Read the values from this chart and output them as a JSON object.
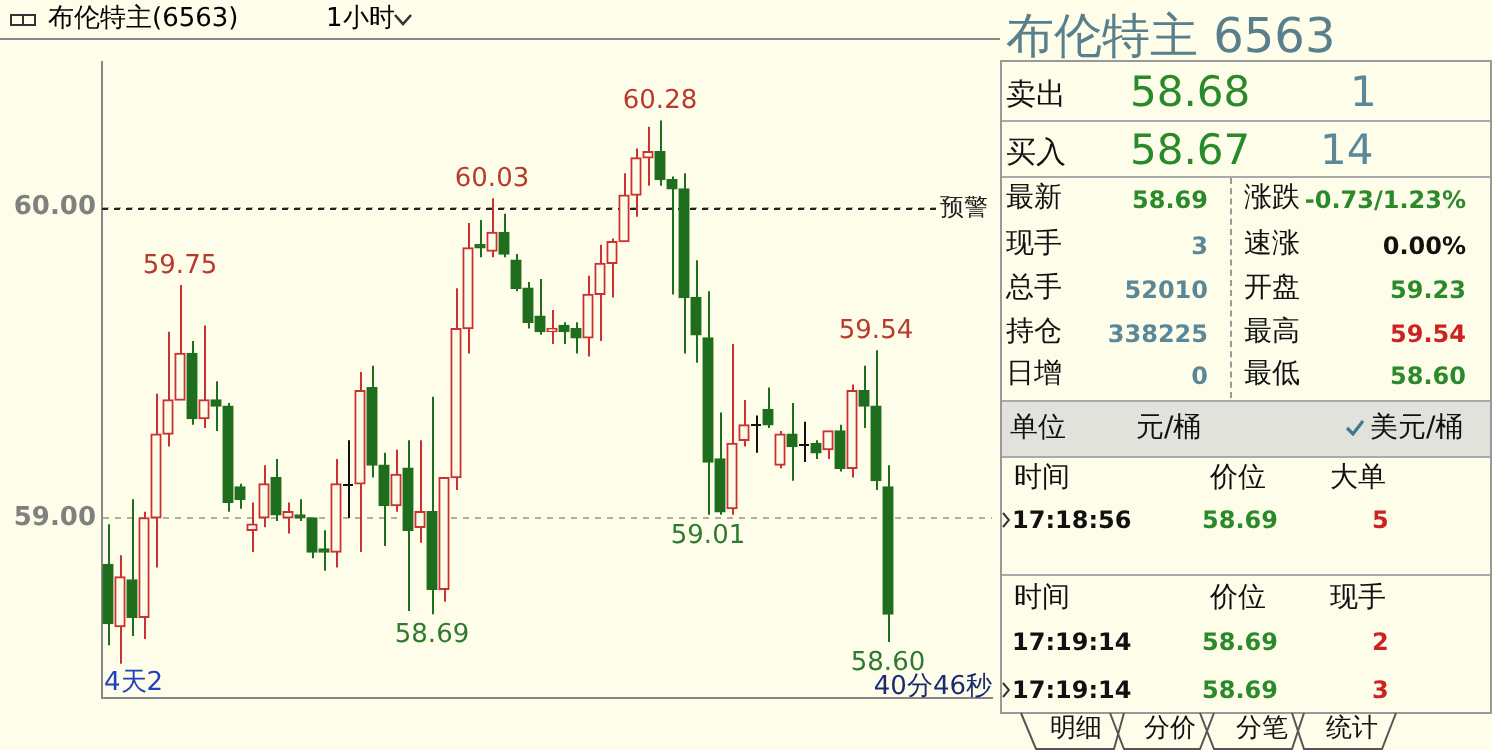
{
  "chart_data": [
    {
      "type": "candlestick",
      "title": "布伦特主(6563)",
      "subtitle": "1小时",
      "categories": [
        null,
        null,
        null,
        null,
        null,
        null,
        null,
        null,
        null,
        null,
        null,
        null,
        null,
        null,
        null,
        null,
        null,
        null,
        null,
        null,
        null,
        null,
        null,
        null,
        null,
        null,
        null,
        null,
        null,
        null,
        null,
        null,
        null,
        null,
        null,
        null,
        null,
        null,
        null,
        null,
        null,
        null,
        null,
        null,
        null,
        null,
        null,
        null,
        null,
        null,
        null,
        null,
        null,
        null,
        null,
        null,
        null,
        null,
        null,
        null,
        null,
        null,
        null,
        null,
        null,
        null
      ],
      "ohlc": [
        [
          58.85,
          58.98,
          58.59,
          58.66
        ],
        [
          58.65,
          58.88,
          58.53,
          58.81
        ],
        [
          58.8,
          59.06,
          58.62,
          58.68
        ],
        [
          58.68,
          59.02,
          58.61,
          59.0
        ],
        [
          59.0,
          59.4,
          58.84,
          59.27
        ],
        [
          59.27,
          59.6,
          59.23,
          59.38
        ],
        [
          59.38,
          59.75,
          59.38,
          59.53
        ],
        [
          59.53,
          59.57,
          59.3,
          59.32
        ],
        [
          59.32,
          59.62,
          59.29,
          59.38
        ],
        [
          59.38,
          59.44,
          59.28,
          59.36
        ],
        [
          59.36,
          59.37,
          59.02,
          59.05
        ],
        [
          59.1,
          59.11,
          59.03,
          59.06
        ],
        [
          58.96,
          59.05,
          58.89,
          58.98
        ],
        [
          59.0,
          59.17,
          58.97,
          59.11
        ],
        [
          59.13,
          59.19,
          58.99,
          59.01
        ],
        [
          59.0,
          59.05,
          58.95,
          59.02
        ],
        [
          59.01,
          59.06,
          58.99,
          59.0
        ],
        [
          59.0,
          59.0,
          58.87,
          58.89
        ],
        [
          58.9,
          58.96,
          58.83,
          58.89
        ],
        [
          58.89,
          59.19,
          58.84,
          59.11
        ],
        [
          59.11,
          59.25,
          59.0,
          59.11
        ],
        [
          59.11,
          59.47,
          58.89,
          59.41
        ],
        [
          59.42,
          59.49,
          59.13,
          59.17
        ],
        [
          59.17,
          59.21,
          58.91,
          59.04
        ],
        [
          59.04,
          59.22,
          59.02,
          59.14
        ],
        [
          59.16,
          59.25,
          58.7,
          58.96
        ],
        [
          58.97,
          59.25,
          58.92,
          59.02
        ],
        [
          59.02,
          59.39,
          58.69,
          58.77
        ],
        [
          58.77,
          59.13,
          58.73,
          59.13
        ],
        [
          59.13,
          59.74,
          59.09,
          59.61
        ],
        [
          59.61,
          59.95,
          59.53,
          59.87
        ],
        [
          59.88,
          59.96,
          59.84,
          59.87
        ],
        [
          59.86,
          60.03,
          59.84,
          59.92
        ],
        [
          59.92,
          59.98,
          59.84,
          59.85
        ],
        [
          59.83,
          59.85,
          59.73,
          59.74
        ],
        [
          59.74,
          59.76,
          59.61,
          59.63
        ],
        [
          59.65,
          59.77,
          59.59,
          59.6
        ],
        [
          59.6,
          59.67,
          59.56,
          59.61
        ],
        [
          59.62,
          59.63,
          59.56,
          59.6
        ],
        [
          59.61,
          59.63,
          59.53,
          59.58
        ],
        [
          59.58,
          59.78,
          59.52,
          59.72
        ],
        [
          59.72,
          59.88,
          59.57,
          59.82
        ],
        [
          59.82,
          59.9,
          59.71,
          59.89
        ],
        [
          59.89,
          60.11,
          59.89,
          60.04
        ],
        [
          60.04,
          60.19,
          59.97,
          60.16
        ],
        [
          60.16,
          60.26,
          60.07,
          60.18
        ],
        [
          60.18,
          60.28,
          60.07,
          60.09
        ],
        [
          60.09,
          60.1,
          59.72,
          60.06
        ],
        [
          60.06,
          60.11,
          59.53,
          59.71
        ],
        [
          59.71,
          59.83,
          59.5,
          59.59
        ],
        [
          59.58,
          59.73,
          59.01,
          59.18
        ],
        [
          59.19,
          59.34,
          59.01,
          59.02
        ],
        [
          59.03,
          59.56,
          59.01,
          59.24
        ],
        [
          59.25,
          59.38,
          59.23,
          59.3
        ],
        [
          59.3,
          59.33,
          59.21,
          59.3
        ],
        [
          59.35,
          59.42,
          59.29,
          59.3
        ],
        [
          59.17,
          59.28,
          59.16,
          59.27
        ],
        [
          59.27,
          59.37,
          59.12,
          59.23
        ],
        [
          59.24,
          59.31,
          59.18,
          59.24
        ],
        [
          59.24,
          59.25,
          59.19,
          59.21
        ],
        [
          59.22,
          59.28,
          59.19,
          59.28
        ],
        [
          59.28,
          59.3,
          59.15,
          59.16
        ],
        [
          59.16,
          59.43,
          59.13,
          59.41
        ],
        [
          59.41,
          59.49,
          59.29,
          59.36
        ],
        [
          59.36,
          59.54,
          59.09,
          59.12
        ],
        [
          59.1,
          59.17,
          58.6,
          58.69
        ]
      ],
      "ylim": [
        58.42,
        60.47
      ],
      "yticks": [
        {
          "value": 59,
          "label": "59.00"
        },
        {
          "value": 60,
          "label": "60.00"
        }
      ],
      "tick_labels": "y",
      "grid": "y",
      "legend": false,
      "ref_lines": [
        {
          "axis": "y",
          "value": 60,
          "label": "预警",
          "line_style": "dashed"
        }
      ],
      "annotations": [
        {
          "text": "59.75",
          "y": 59.75
        },
        {
          "text": "58.69",
          "y": 58.69
        },
        {
          "text": "60.03",
          "y": 60.03
        },
        {
          "text": "60.28",
          "y": 60.28
        },
        {
          "text": "59.01",
          "y": 59.01
        },
        {
          "text": "59.54",
          "y": 59.54
        },
        {
          "text": "58.60",
          "y": 58.6
        },
        "4天2",
        "40分46秒"
      ]
    },
    {
      "type": "other",
      "title": "布伦特主 6563",
      "annotations": [
        "卖出",
        "58.68",
        "1",
        "买入",
        "58.67",
        "14",
        "最新",
        "58.69",
        "涨跌",
        "-0.73/1.23%",
        "现手",
        "3",
        "速涨",
        "0.00%",
        "总手",
        "52010",
        "开盘",
        "59.23",
        "持仓",
        "338225",
        "最高",
        "59.54",
        "日增",
        "0",
        "最低",
        "58.60",
        "单位",
        "元/桶",
        "美元/桶",
        "时间",
        "价位",
        "大单",
        "17:18:56",
        "58.69",
        "5",
        "时间",
        "价位",
        "现手",
        "17:19:14",
        "58.69",
        "2",
        "17:19:14",
        "58.69",
        "3",
        "明细",
        "分价",
        "分笔",
        "统计"
      ]
    }
  ]
}
